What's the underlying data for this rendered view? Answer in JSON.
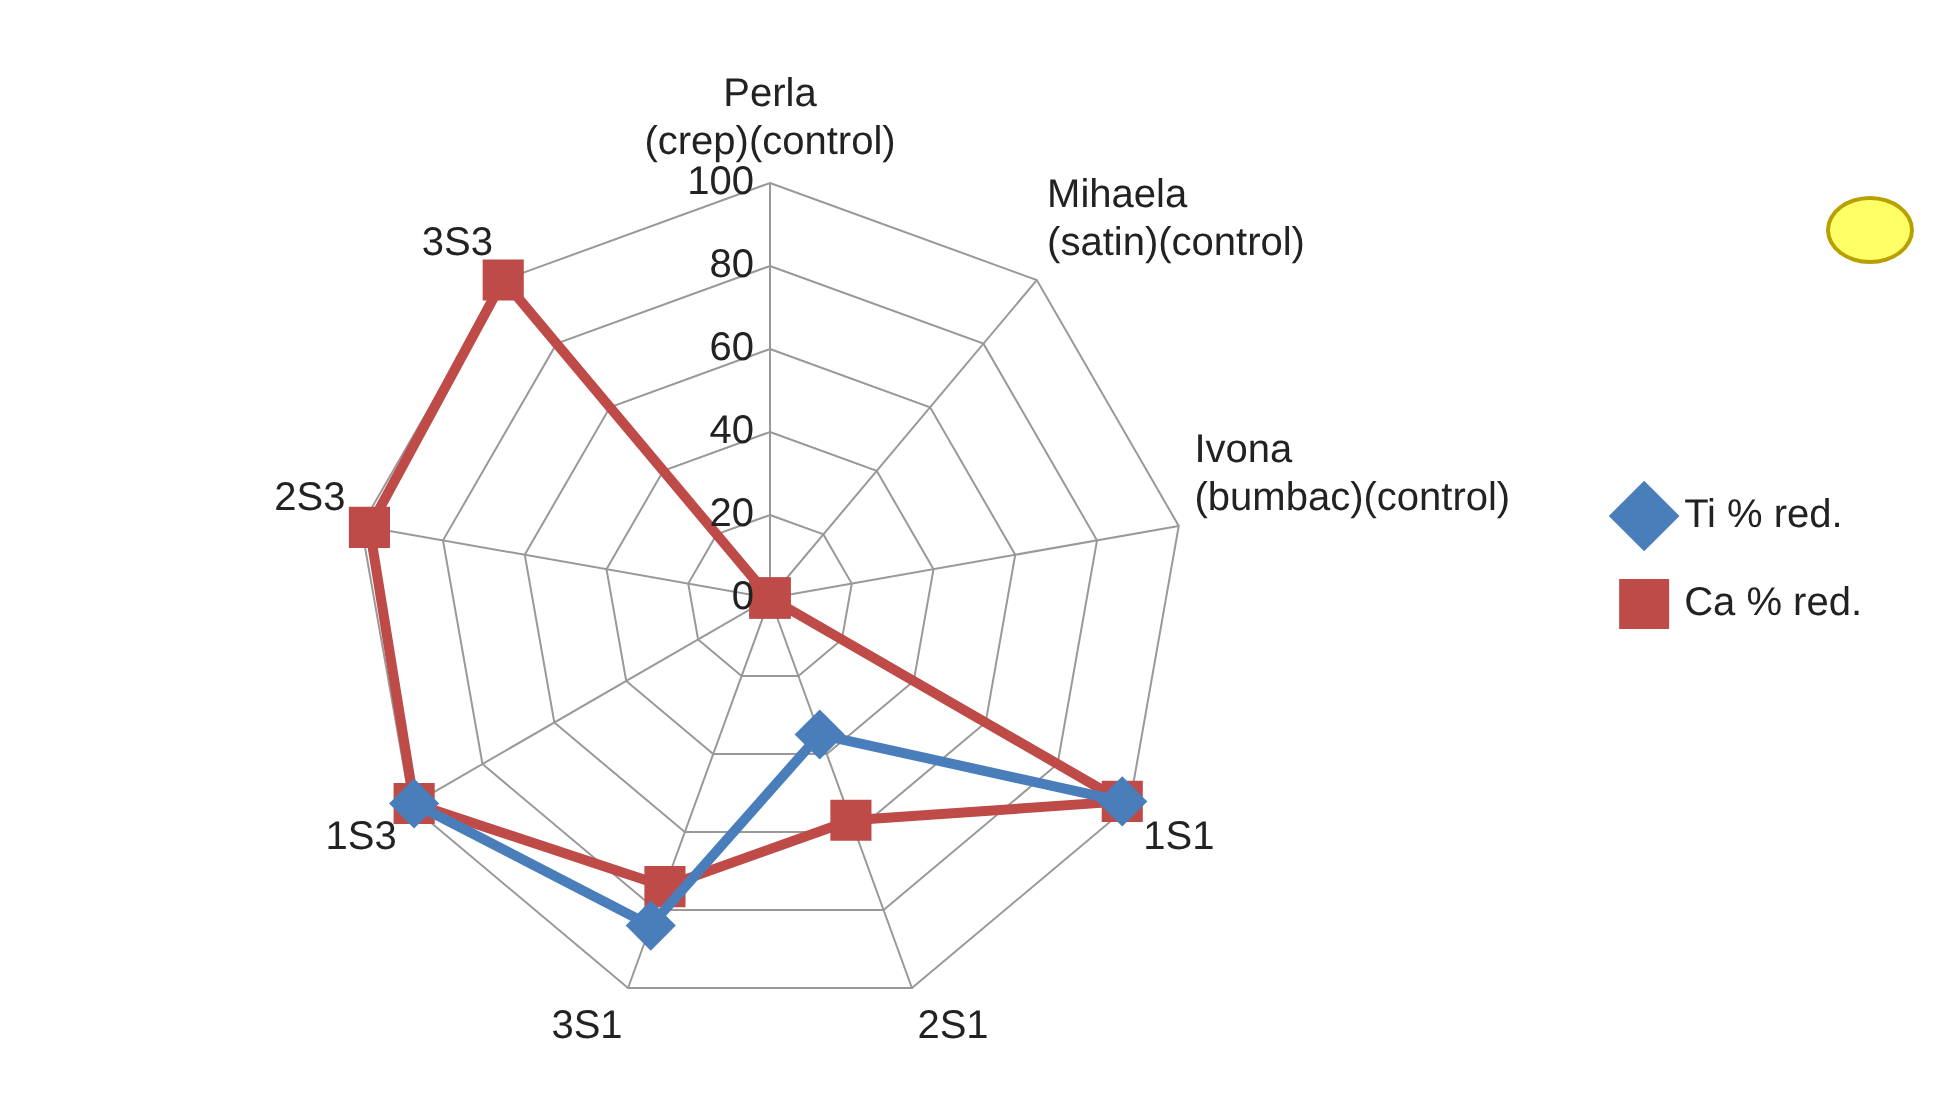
{
  "chart_data": {
    "type": "radar",
    "categories": [
      "Perla (crep)(control)",
      "Mihaela (satin)(control)",
      "Ivona (bumbac)(control)",
      "1S1",
      "2S1",
      "3S1",
      "1S3",
      "2S3",
      "3S3"
    ],
    "series": [
      {
        "name": "Ti % red.",
        "color": "#4a7ebb",
        "marker": "diamond",
        "values": [
          null,
          null,
          null,
          98,
          35,
          84,
          99,
          null,
          null
        ]
      },
      {
        "name": "Ca % red.",
        "color": "#be4b48",
        "marker": "square",
        "values": [
          0,
          0,
          0,
          98,
          57,
          74,
          99,
          98,
          100
        ]
      }
    ],
    "ylim": [
      0,
      100
    ],
    "yticks": [
      0,
      20,
      40,
      60,
      80,
      100
    ],
    "grid": true,
    "legend": "right"
  }
}
